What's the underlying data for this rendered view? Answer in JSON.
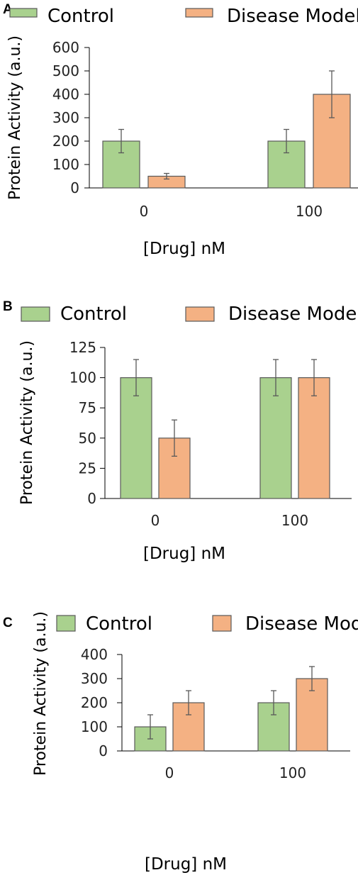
{
  "colors": {
    "control": "#a9d18e",
    "disease": "#f4b183",
    "bar_stroke": "#595959",
    "axis": "#000000",
    "error": "#595959"
  },
  "legend": {
    "control": "Control",
    "disease": "Disease Model"
  },
  "chart_data": [
    {
      "panel": "A",
      "type": "bar",
      "categories": [
        "0",
        "100"
      ],
      "series": [
        {
          "name": "Control",
          "values": [
            200,
            200
          ],
          "errors": [
            50,
            50
          ]
        },
        {
          "name": "Disease Model",
          "values": [
            50,
            400
          ],
          "errors": [
            12,
            100
          ]
        }
      ],
      "yticks": [
        "0",
        "100",
        "200",
        "300",
        "400",
        "500",
        "600"
      ],
      "ylim": [
        0,
        600
      ],
      "ylabel": "Protein Activity (a.u.)",
      "xlabel": "[Drug] nM"
    },
    {
      "panel": "B",
      "type": "bar",
      "categories": [
        "0",
        "100"
      ],
      "series": [
        {
          "name": "Control",
          "values": [
            100,
            100
          ],
          "errors": [
            15,
            15
          ]
        },
        {
          "name": "Disease Model",
          "values": [
            50,
            100
          ],
          "errors": [
            15,
            15
          ]
        }
      ],
      "yticks": [
        "0",
        "25",
        "50",
        "75",
        "100",
        "125"
      ],
      "ylim": [
        0,
        125
      ],
      "ylabel": "Protein Activity (a.u.)",
      "xlabel": "[Drug] nM"
    },
    {
      "panel": "C",
      "type": "bar",
      "categories": [
        "0",
        "100"
      ],
      "series": [
        {
          "name": "Control",
          "values": [
            100,
            200
          ],
          "errors": [
            50,
            50
          ]
        },
        {
          "name": "Disease Model",
          "values": [
            200,
            300
          ],
          "errors": [
            50,
            50
          ]
        }
      ],
      "yticks": [
        "0",
        "100",
        "200",
        "300",
        "400"
      ],
      "ylim": [
        0,
        400
      ],
      "ylabel": "Protein Activity (a.u.)",
      "xlabel": "[Drug] nM"
    }
  ]
}
